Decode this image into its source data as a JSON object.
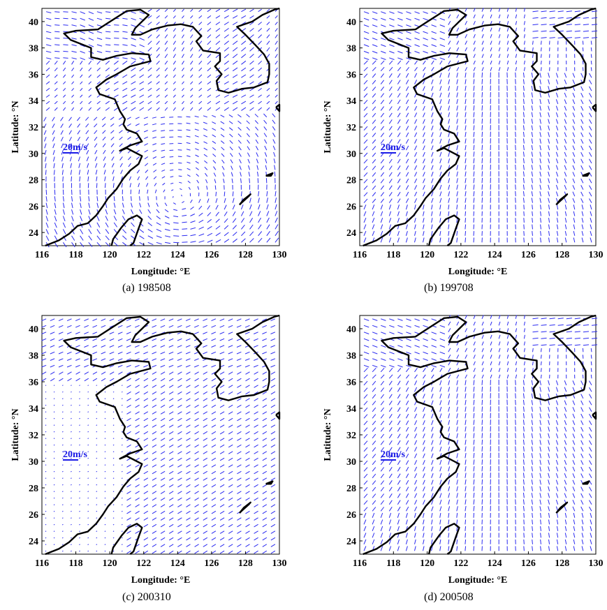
{
  "figure": {
    "vector_color": "#2a2af0",
    "coast_color": "#000000",
    "scale_color": "#1a1ae6",
    "panels": [
      {
        "caption": "(a) 198508",
        "pattern": "vortex",
        "scale_label": "20m/s",
        "xlabel": "Longitude: °E",
        "ylabel": "Latitude: °N",
        "xticks": [
          "116",
          "118",
          "120",
          "122",
          "124",
          "126",
          "128",
          "130"
        ],
        "yticks": [
          "24",
          "26",
          "28",
          "30",
          "32",
          "34",
          "36",
          "38",
          "40"
        ]
      },
      {
        "caption": "(b) 199708",
        "pattern": "convergent",
        "scale_label": "20m/s",
        "xlabel": "Longitude: °E",
        "ylabel": "Latitude: °N",
        "xticks": [
          "116",
          "118",
          "120",
          "122",
          "124",
          "126",
          "128",
          "130"
        ],
        "yticks": [
          "24",
          "26",
          "28",
          "30",
          "32",
          "34",
          "36",
          "38",
          "40"
        ]
      },
      {
        "caption": "(c) 200310",
        "pattern": "northeasterly",
        "scale_label": "20m/s",
        "xlabel": "Longitude: °E",
        "ylabel": "Latitude: °N",
        "xticks": [
          "116",
          "118",
          "120",
          "122",
          "124",
          "126",
          "128",
          "130"
        ],
        "yticks": [
          "24",
          "26",
          "28",
          "30",
          "32",
          "34",
          "36",
          "38",
          "40"
        ]
      },
      {
        "caption": "(d) 200508",
        "pattern": "convergent",
        "scale_label": "20m/s",
        "xlabel": "Longitude: °E",
        "ylabel": "Latitude: °N",
        "xticks": [
          "116",
          "118",
          "120",
          "122",
          "124",
          "126",
          "128",
          "130"
        ],
        "yticks": [
          "24",
          "26",
          "28",
          "30",
          "32",
          "34",
          "36",
          "38",
          "40"
        ]
      }
    ],
    "lon_range": [
      116,
      130
    ],
    "lat_range": [
      23,
      41
    ]
  }
}
